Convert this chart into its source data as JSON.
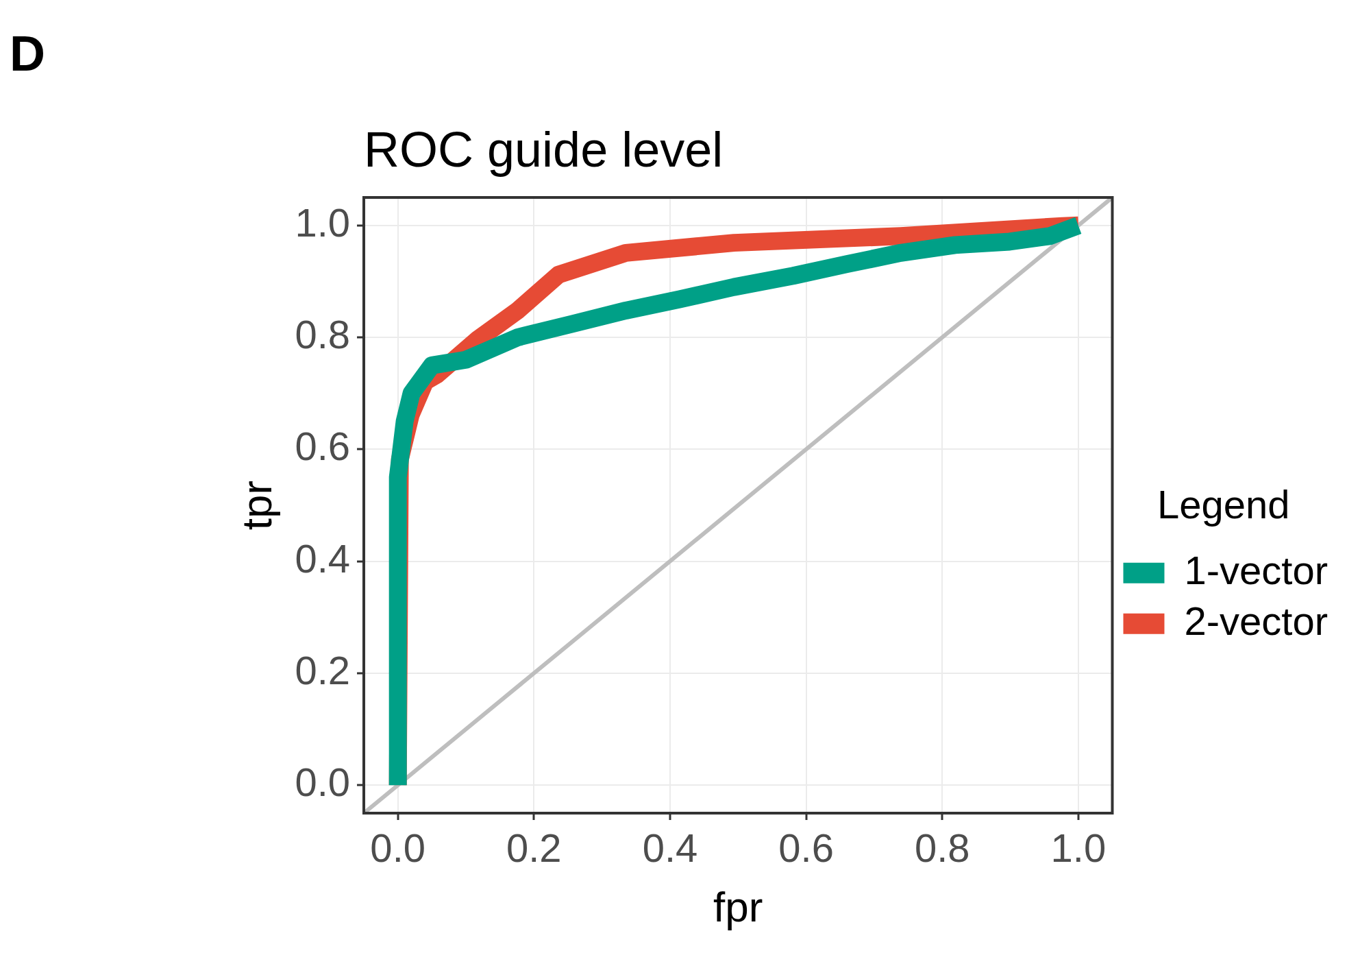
{
  "chart_data": {
    "type": "line",
    "title": "ROC guide level",
    "xlabel": "fpr",
    "ylabel": "tpr",
    "legend_title": "Legend",
    "annotations": [
      "D"
    ],
    "xlim": [
      -0.05,
      1.05
    ],
    "ylim": [
      -0.05,
      1.05
    ],
    "xticks": [
      {
        "value": 0,
        "label": "0.0"
      },
      0.2,
      0.4,
      0.6,
      0.8,
      {
        "value": 1,
        "label": "1.0"
      }
    ],
    "yticks": [
      {
        "value": 0,
        "label": "0.0"
      },
      0.2,
      0.4,
      0.6,
      0.8,
      {
        "value": 1,
        "label": "1.0"
      }
    ],
    "grid": true,
    "legend": "right",
    "marker": "none",
    "line_style": "solid",
    "series": [
      {
        "name": "1-vector",
        "color": "#00a087",
        "x": [
          0,
          0,
          0.01,
          0.02,
          0.05,
          0.1,
          0.176,
          0.256,
          0.335,
          0.414,
          0.494,
          0.581,
          0.66,
          0.739,
          0.819,
          0.899,
          0.958,
          1
        ],
        "values": [
          0,
          0.55,
          0.65,
          0.7,
          0.75,
          0.76,
          0.8,
          0.824,
          0.848,
          0.868,
          0.89,
          0.91,
          0.931,
          0.951,
          0.965,
          0.971,
          0.981,
          1
        ]
      },
      {
        "name": "2-vector",
        "color": "#e64b35",
        "x": [
          0,
          0.003,
          0.019,
          0.04,
          0.057,
          0.117,
          0.176,
          0.236,
          0.335,
          0.494,
          0.739,
          0.977,
          1
        ],
        "values": [
          0,
          0.582,
          0.662,
          0.721,
          0.733,
          0.796,
          0.848,
          0.912,
          0.951,
          0.969,
          0.981,
          0.999,
          1
        ]
      },
      {
        "type": "line",
        "color": "#bebebe",
        "x": [
          -0.05,
          1.05
        ],
        "values": [
          -0.05,
          1.05
        ]
      }
    ]
  }
}
